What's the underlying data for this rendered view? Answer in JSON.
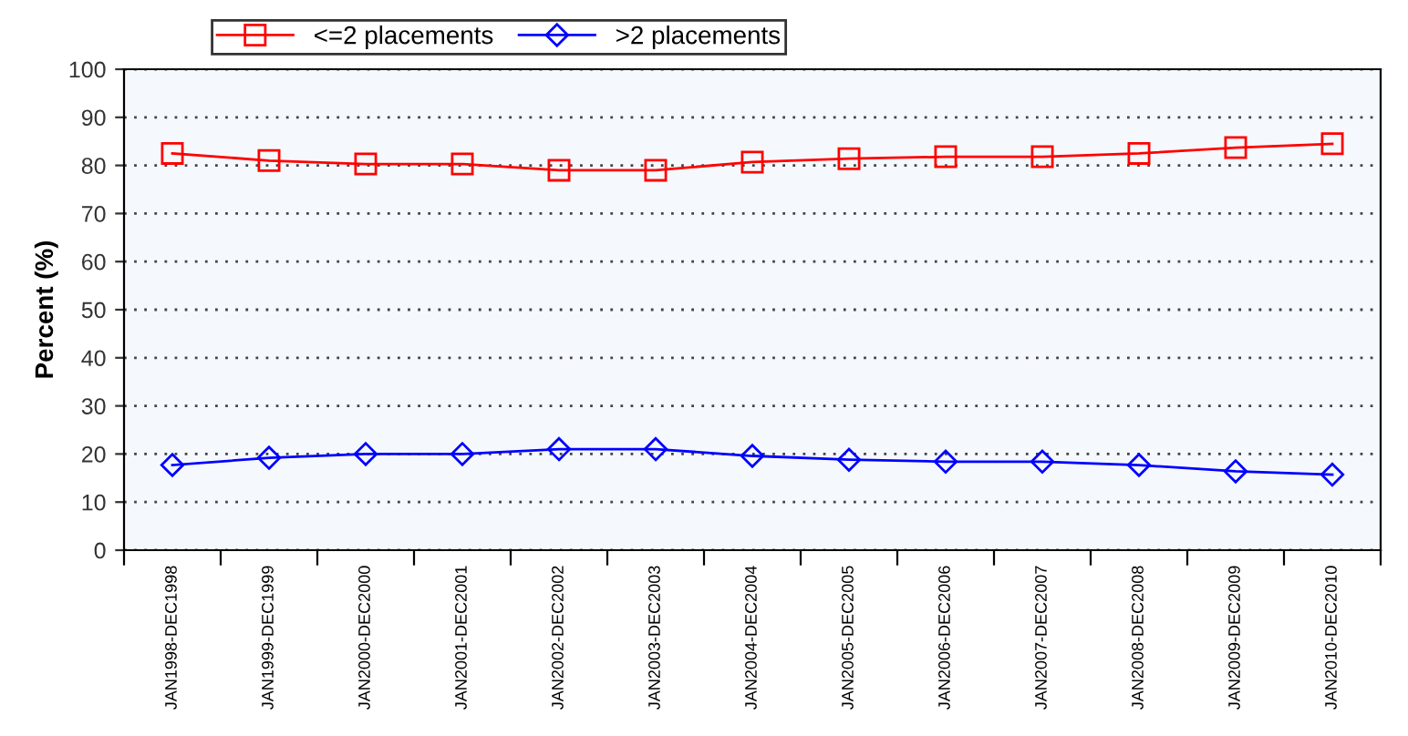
{
  "chart_data": {
    "type": "line",
    "ylabel": "Percent (%)",
    "categories": [
      "JAN1998-DEC1998",
      "JAN1999-DEC1999",
      "JAN2000-DEC2000",
      "JAN2001-DEC2001",
      "JAN2002-DEC2002",
      "JAN2003-DEC2003",
      "JAN2004-DEC2004",
      "JAN2005-DEC2005",
      "JAN2006-DEC2006",
      "JAN2007-DEC2007",
      "JAN2008-DEC2008",
      "JAN2009-DEC2009",
      "JAN2010-DEC2010"
    ],
    "series": [
      {
        "name": "<=2 placements",
        "color": "#ff0000",
        "marker": "square",
        "values": [
          82.5,
          81,
          80.3,
          80.3,
          79,
          79,
          80.7,
          81.4,
          81.8,
          81.8,
          82.5,
          83.7,
          84.5
        ]
      },
      {
        "name": ">2 placements",
        "color": "#0000ff",
        "marker": "diamond",
        "values": [
          17.7,
          19.2,
          20,
          20,
          21,
          21,
          19.6,
          18.8,
          18.4,
          18.4,
          17.7,
          16.4,
          15.7
        ]
      }
    ],
    "ylim": [
      0,
      100
    ],
    "yticks": [
      0,
      10,
      20,
      30,
      40,
      50,
      60,
      70,
      80,
      90,
      100
    ],
    "grid": "y",
    "legend": "top left",
    "line_style": "solid"
  }
}
